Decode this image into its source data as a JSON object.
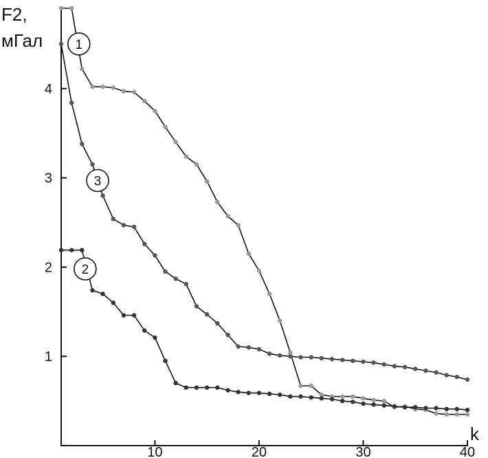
{
  "chart_data": {
    "type": "line",
    "xlabel": "k",
    "ylabel_line1": "F2,",
    "ylabel_line2": "мГал",
    "xlim": [
      1,
      40
    ],
    "ylim": [
      0,
      4.9
    ],
    "xticks": [
      10,
      20,
      30,
      40
    ],
    "yticks": [
      1,
      2,
      3,
      4
    ],
    "grid": false,
    "series": [
      {
        "name": "1",
        "color": "#999999",
        "points": [
          [
            1,
            4.9
          ],
          [
            2,
            4.9
          ],
          [
            3,
            4.22
          ],
          [
            4,
            4.02
          ],
          [
            5,
            4.02
          ],
          [
            6,
            4.01
          ],
          [
            7,
            3.97
          ],
          [
            8,
            3.96
          ],
          [
            9,
            3.86
          ],
          [
            10,
            3.75
          ],
          [
            11,
            3.57
          ],
          [
            12,
            3.4
          ],
          [
            13,
            3.24
          ],
          [
            14,
            3.15
          ],
          [
            15,
            2.96
          ],
          [
            16,
            2.73
          ],
          [
            17,
            2.57
          ],
          [
            18,
            2.47
          ],
          [
            19,
            2.15
          ],
          [
            20,
            1.96
          ],
          [
            21,
            1.7
          ],
          [
            22,
            1.4
          ],
          [
            23,
            1.04
          ],
          [
            24,
            0.67
          ],
          [
            25,
            0.67
          ],
          [
            26,
            0.57
          ],
          [
            27,
            0.55
          ],
          [
            28,
            0.55
          ],
          [
            29,
            0.55
          ],
          [
            30,
            0.53
          ],
          [
            31,
            0.51
          ],
          [
            32,
            0.5
          ],
          [
            33,
            0.43
          ],
          [
            34,
            0.44
          ],
          [
            35,
            0.41
          ],
          [
            36,
            0.4
          ],
          [
            37,
            0.36
          ],
          [
            38,
            0.35
          ],
          [
            39,
            0.35
          ],
          [
            40,
            0.35
          ]
        ]
      },
      {
        "name": "2",
        "color": "#333333",
        "points": [
          [
            1,
            2.19
          ],
          [
            2,
            2.19
          ],
          [
            3,
            2.19
          ],
          [
            4,
            1.74
          ],
          [
            5,
            1.7
          ],
          [
            6,
            1.6
          ],
          [
            7,
            1.46
          ],
          [
            8,
            1.46
          ],
          [
            9,
            1.29
          ],
          [
            10,
            1.21
          ],
          [
            11,
            0.95
          ],
          [
            12,
            0.7
          ],
          [
            13,
            0.65
          ],
          [
            14,
            0.65
          ],
          [
            15,
            0.65
          ],
          [
            16,
            0.65
          ],
          [
            17,
            0.62
          ],
          [
            18,
            0.6
          ],
          [
            19,
            0.59
          ],
          [
            20,
            0.59
          ],
          [
            21,
            0.58
          ],
          [
            22,
            0.57
          ],
          [
            23,
            0.55
          ],
          [
            24,
            0.55
          ],
          [
            25,
            0.54
          ],
          [
            26,
            0.53
          ],
          [
            27,
            0.52
          ],
          [
            28,
            0.5
          ],
          [
            29,
            0.49
          ],
          [
            30,
            0.47
          ],
          [
            31,
            0.46
          ],
          [
            32,
            0.45
          ],
          [
            33,
            0.44
          ],
          [
            34,
            0.43
          ],
          [
            35,
            0.43
          ],
          [
            36,
            0.42
          ],
          [
            37,
            0.42
          ],
          [
            38,
            0.41
          ],
          [
            39,
            0.41
          ],
          [
            40,
            0.4
          ]
        ]
      },
      {
        "name": "3",
        "color": "#555555",
        "points": [
          [
            1,
            4.5
          ],
          [
            2,
            3.84
          ],
          [
            3,
            3.38
          ],
          [
            4,
            3.15
          ],
          [
            5,
            2.8
          ],
          [
            6,
            2.54
          ],
          [
            7,
            2.47
          ],
          [
            8,
            2.45
          ],
          [
            9,
            2.26
          ],
          [
            10,
            2.13
          ],
          [
            11,
            1.95
          ],
          [
            12,
            1.87
          ],
          [
            13,
            1.81
          ],
          [
            14,
            1.56
          ],
          [
            15,
            1.47
          ],
          [
            16,
            1.37
          ],
          [
            17,
            1.24
          ],
          [
            18,
            1.11
          ],
          [
            19,
            1.1
          ],
          [
            20,
            1.08
          ],
          [
            21,
            1.03
          ],
          [
            22,
            1.01
          ],
          [
            23,
            1.0
          ],
          [
            24,
            0.99
          ],
          [
            25,
            0.99
          ],
          [
            26,
            0.98
          ],
          [
            27,
            0.97
          ],
          [
            28,
            0.96
          ],
          [
            29,
            0.95
          ],
          [
            30,
            0.94
          ],
          [
            31,
            0.93
          ],
          [
            32,
            0.91
          ],
          [
            33,
            0.89
          ],
          [
            34,
            0.88
          ],
          [
            35,
            0.86
          ],
          [
            36,
            0.84
          ],
          [
            37,
            0.82
          ],
          [
            38,
            0.79
          ],
          [
            39,
            0.77
          ],
          [
            40,
            0.74
          ]
        ]
      }
    ],
    "series_label_anchors": [
      {
        "name": "1",
        "x": 2.7,
        "y": 4.5
      },
      {
        "name": "2",
        "x": 3.3,
        "y": 1.98
      },
      {
        "name": "3",
        "x": 4.5,
        "y": 2.97
      }
    ]
  }
}
